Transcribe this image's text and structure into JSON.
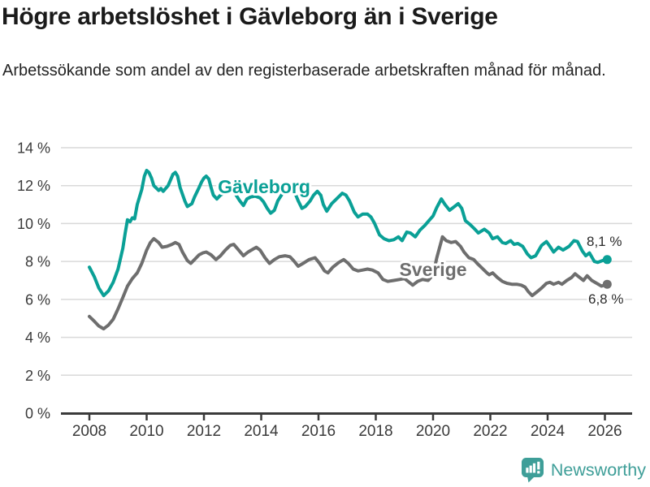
{
  "header": {
    "title": "Högre arbetslöshet i Gävleborg än i Sverige",
    "subtitle": "Arbetssökande som andel av den registerbaserade arbetskraften månad för månad."
  },
  "footer": {
    "brand": "Newsworthy"
  },
  "colors": {
    "gavleborg": "#0aa096",
    "sverige": "#6e6e6e",
    "grid": "#d9d9d9",
    "axis": "#3a3a3a",
    "title_text": "#1a1a1a",
    "value_label_text": "#2b2b2b",
    "logo_teal": "#3e9e98",
    "background": "#ffffff"
  },
  "chart_data": {
    "type": "line",
    "title": "Högre arbetslöshet i Gävleborg än i Sverige",
    "subtitle": "Arbetssökande som andel av den registerbaserade arbetskraften månad för månad.",
    "unit": "%",
    "grid": true,
    "legend": "inline-labels",
    "xlim": [
      2007.0,
      2026.95
    ],
    "ylim": [
      0,
      14
    ],
    "x_ticks": [
      2008,
      2010,
      2012,
      2014,
      2016,
      2018,
      2020,
      2022,
      2024,
      2026
    ],
    "y_ticks": [
      0,
      2,
      4,
      6,
      8,
      10,
      12,
      14
    ],
    "series": [
      {
        "name": "Gävleborg",
        "color": "#0aa096",
        "end_label": "8,1 %",
        "final_value": 8.1,
        "points": [
          [
            2008.0,
            7.7
          ],
          [
            2008.17,
            7.2
          ],
          [
            2008.33,
            6.6
          ],
          [
            2008.5,
            6.2
          ],
          [
            2008.67,
            6.45
          ],
          [
            2008.83,
            6.9
          ],
          [
            2009.0,
            7.6
          ],
          [
            2009.17,
            8.7
          ],
          [
            2009.25,
            9.5
          ],
          [
            2009.33,
            10.2
          ],
          [
            2009.42,
            10.1
          ],
          [
            2009.5,
            10.3
          ],
          [
            2009.58,
            10.25
          ],
          [
            2009.67,
            11.0
          ],
          [
            2009.83,
            11.8
          ],
          [
            2009.92,
            12.5
          ],
          [
            2010.0,
            12.8
          ],
          [
            2010.08,
            12.7
          ],
          [
            2010.17,
            12.4
          ],
          [
            2010.25,
            12.0
          ],
          [
            2010.42,
            11.75
          ],
          [
            2010.5,
            11.85
          ],
          [
            2010.58,
            11.7
          ],
          [
            2010.75,
            12.0
          ],
          [
            2010.92,
            12.6
          ],
          [
            2011.0,
            12.7
          ],
          [
            2011.08,
            12.5
          ],
          [
            2011.17,
            11.9
          ],
          [
            2011.33,
            11.2
          ],
          [
            2011.42,
            10.9
          ],
          [
            2011.58,
            11.05
          ],
          [
            2011.67,
            11.4
          ],
          [
            2011.83,
            11.9
          ],
          [
            2011.92,
            12.2
          ],
          [
            2012.0,
            12.4
          ],
          [
            2012.08,
            12.5
          ],
          [
            2012.17,
            12.35
          ],
          [
            2012.25,
            11.9
          ],
          [
            2012.33,
            11.5
          ],
          [
            2012.45,
            11.3
          ],
          [
            2012.58,
            11.5
          ],
          [
            2012.75,
            11.65
          ],
          [
            2012.92,
            11.8
          ],
          [
            2013.08,
            11.6
          ],
          [
            2013.25,
            11.2
          ],
          [
            2013.38,
            10.95
          ],
          [
            2013.5,
            11.3
          ],
          [
            2013.63,
            11.4
          ],
          [
            2013.79,
            11.45
          ],
          [
            2013.96,
            11.35
          ],
          [
            2014.08,
            11.15
          ],
          [
            2014.21,
            10.8
          ],
          [
            2014.33,
            10.55
          ],
          [
            2014.46,
            10.7
          ],
          [
            2014.58,
            11.2
          ],
          [
            2014.75,
            11.6
          ],
          [
            2014.92,
            11.9
          ],
          [
            2015.0,
            12.0
          ],
          [
            2015.13,
            11.8
          ],
          [
            2015.29,
            11.2
          ],
          [
            2015.42,
            10.8
          ],
          [
            2015.54,
            10.9
          ],
          [
            2015.71,
            11.2
          ],
          [
            2015.83,
            11.5
          ],
          [
            2015.96,
            11.7
          ],
          [
            2016.08,
            11.5
          ],
          [
            2016.17,
            11.0
          ],
          [
            2016.29,
            10.65
          ],
          [
            2016.46,
            11.05
          ],
          [
            2016.63,
            11.3
          ],
          [
            2016.83,
            11.6
          ],
          [
            2016.96,
            11.5
          ],
          [
            2017.08,
            11.2
          ],
          [
            2017.25,
            10.6
          ],
          [
            2017.38,
            10.35
          ],
          [
            2017.54,
            10.5
          ],
          [
            2017.71,
            10.5
          ],
          [
            2017.83,
            10.35
          ],
          [
            2017.96,
            10.0
          ],
          [
            2018.13,
            9.4
          ],
          [
            2018.29,
            9.2
          ],
          [
            2018.46,
            9.1
          ],
          [
            2018.63,
            9.15
          ],
          [
            2018.79,
            9.3
          ],
          [
            2018.92,
            9.1
          ],
          [
            2019.08,
            9.55
          ],
          [
            2019.21,
            9.5
          ],
          [
            2019.38,
            9.3
          ],
          [
            2019.54,
            9.65
          ],
          [
            2019.71,
            9.9
          ],
          [
            2019.88,
            10.2
          ],
          [
            2020.0,
            10.4
          ],
          [
            2020.13,
            10.85
          ],
          [
            2020.29,
            11.3
          ],
          [
            2020.42,
            11.0
          ],
          [
            2020.58,
            10.7
          ],
          [
            2020.75,
            10.9
          ],
          [
            2020.88,
            11.05
          ],
          [
            2021.0,
            10.8
          ],
          [
            2021.13,
            10.15
          ],
          [
            2021.29,
            9.95
          ],
          [
            2021.46,
            9.7
          ],
          [
            2021.58,
            9.5
          ],
          [
            2021.79,
            9.7
          ],
          [
            2021.96,
            9.5
          ],
          [
            2022.08,
            9.2
          ],
          [
            2022.25,
            9.3
          ],
          [
            2022.42,
            9.0
          ],
          [
            2022.54,
            8.95
          ],
          [
            2022.71,
            9.1
          ],
          [
            2022.83,
            8.9
          ],
          [
            2022.96,
            8.95
          ],
          [
            2023.13,
            8.8
          ],
          [
            2023.29,
            8.4
          ],
          [
            2023.42,
            8.2
          ],
          [
            2023.58,
            8.3
          ],
          [
            2023.79,
            8.85
          ],
          [
            2023.96,
            9.05
          ],
          [
            2024.08,
            8.8
          ],
          [
            2024.21,
            8.5
          ],
          [
            2024.38,
            8.75
          ],
          [
            2024.54,
            8.6
          ],
          [
            2024.75,
            8.8
          ],
          [
            2024.92,
            9.1
          ],
          [
            2025.04,
            9.05
          ],
          [
            2025.21,
            8.55
          ],
          [
            2025.33,
            8.3
          ],
          [
            2025.46,
            8.45
          ],
          [
            2025.63,
            8.0
          ],
          [
            2025.75,
            7.95
          ],
          [
            2025.92,
            8.05
          ],
          [
            2026.08,
            8.1
          ]
        ]
      },
      {
        "name": "Sverige",
        "color": "#6e6e6e",
        "end_label": "6,8 %",
        "final_value": 6.8,
        "points": [
          [
            2008.0,
            5.1
          ],
          [
            2008.17,
            4.85
          ],
          [
            2008.33,
            4.6
          ],
          [
            2008.5,
            4.45
          ],
          [
            2008.67,
            4.65
          ],
          [
            2008.83,
            4.95
          ],
          [
            2009.0,
            5.5
          ],
          [
            2009.17,
            6.1
          ],
          [
            2009.33,
            6.7
          ],
          [
            2009.5,
            7.1
          ],
          [
            2009.67,
            7.4
          ],
          [
            2009.83,
            7.9
          ],
          [
            2010.0,
            8.6
          ],
          [
            2010.13,
            9.0
          ],
          [
            2010.25,
            9.2
          ],
          [
            2010.42,
            9.0
          ],
          [
            2010.54,
            8.75
          ],
          [
            2010.71,
            8.8
          ],
          [
            2010.88,
            8.9
          ],
          [
            2011.0,
            9.0
          ],
          [
            2011.13,
            8.9
          ],
          [
            2011.25,
            8.5
          ],
          [
            2011.42,
            8.05
          ],
          [
            2011.54,
            7.9
          ],
          [
            2011.67,
            8.1
          ],
          [
            2011.83,
            8.35
          ],
          [
            2011.96,
            8.45
          ],
          [
            2012.08,
            8.5
          ],
          [
            2012.25,
            8.35
          ],
          [
            2012.42,
            8.1
          ],
          [
            2012.58,
            8.3
          ],
          [
            2012.75,
            8.6
          ],
          [
            2012.92,
            8.85
          ],
          [
            2013.04,
            8.9
          ],
          [
            2013.21,
            8.6
          ],
          [
            2013.38,
            8.3
          ],
          [
            2013.54,
            8.5
          ],
          [
            2013.71,
            8.65
          ],
          [
            2013.83,
            8.75
          ],
          [
            2013.96,
            8.6
          ],
          [
            2014.13,
            8.2
          ],
          [
            2014.29,
            7.9
          ],
          [
            2014.46,
            8.1
          ],
          [
            2014.63,
            8.25
          ],
          [
            2014.83,
            8.3
          ],
          [
            2015.0,
            8.25
          ],
          [
            2015.13,
            8.05
          ],
          [
            2015.29,
            7.75
          ],
          [
            2015.46,
            7.9
          ],
          [
            2015.67,
            8.1
          ],
          [
            2015.88,
            8.2
          ],
          [
            2016.04,
            7.9
          ],
          [
            2016.21,
            7.5
          ],
          [
            2016.33,
            7.4
          ],
          [
            2016.5,
            7.7
          ],
          [
            2016.71,
            7.95
          ],
          [
            2016.88,
            8.1
          ],
          [
            2017.04,
            7.9
          ],
          [
            2017.21,
            7.6
          ],
          [
            2017.38,
            7.5
          ],
          [
            2017.54,
            7.55
          ],
          [
            2017.71,
            7.6
          ],
          [
            2017.88,
            7.55
          ],
          [
            2018.08,
            7.4
          ],
          [
            2018.25,
            7.05
          ],
          [
            2018.42,
            6.95
          ],
          [
            2018.63,
            7.0
          ],
          [
            2018.83,
            7.05
          ],
          [
            2019.0,
            7.1
          ],
          [
            2019.13,
            6.95
          ],
          [
            2019.29,
            6.75
          ],
          [
            2019.46,
            6.95
          ],
          [
            2019.63,
            7.05
          ],
          [
            2019.83,
            7.0
          ],
          [
            2020.0,
            7.3
          ],
          [
            2020.13,
            8.2
          ],
          [
            2020.33,
            9.3
          ],
          [
            2020.46,
            9.1
          ],
          [
            2020.63,
            9.0
          ],
          [
            2020.79,
            9.05
          ],
          [
            2020.96,
            8.8
          ],
          [
            2021.08,
            8.5
          ],
          [
            2021.25,
            8.2
          ],
          [
            2021.42,
            8.1
          ],
          [
            2021.54,
            7.9
          ],
          [
            2021.71,
            7.65
          ],
          [
            2021.88,
            7.4
          ],
          [
            2021.96,
            7.3
          ],
          [
            2022.08,
            7.4
          ],
          [
            2022.25,
            7.15
          ],
          [
            2022.42,
            6.95
          ],
          [
            2022.58,
            6.85
          ],
          [
            2022.75,
            6.8
          ],
          [
            2022.92,
            6.8
          ],
          [
            2023.08,
            6.75
          ],
          [
            2023.21,
            6.65
          ],
          [
            2023.33,
            6.4
          ],
          [
            2023.46,
            6.2
          ],
          [
            2023.63,
            6.4
          ],
          [
            2023.79,
            6.6
          ],
          [
            2023.96,
            6.85
          ],
          [
            2024.08,
            6.9
          ],
          [
            2024.21,
            6.8
          ],
          [
            2024.38,
            6.9
          ],
          [
            2024.5,
            6.8
          ],
          [
            2024.67,
            7.0
          ],
          [
            2024.83,
            7.15
          ],
          [
            2024.96,
            7.35
          ],
          [
            2025.08,
            7.2
          ],
          [
            2025.25,
            7.0
          ],
          [
            2025.38,
            7.25
          ],
          [
            2025.54,
            7.0
          ],
          [
            2025.71,
            6.85
          ],
          [
            2025.88,
            6.7
          ],
          [
            2026.08,
            6.8
          ]
        ]
      }
    ]
  }
}
